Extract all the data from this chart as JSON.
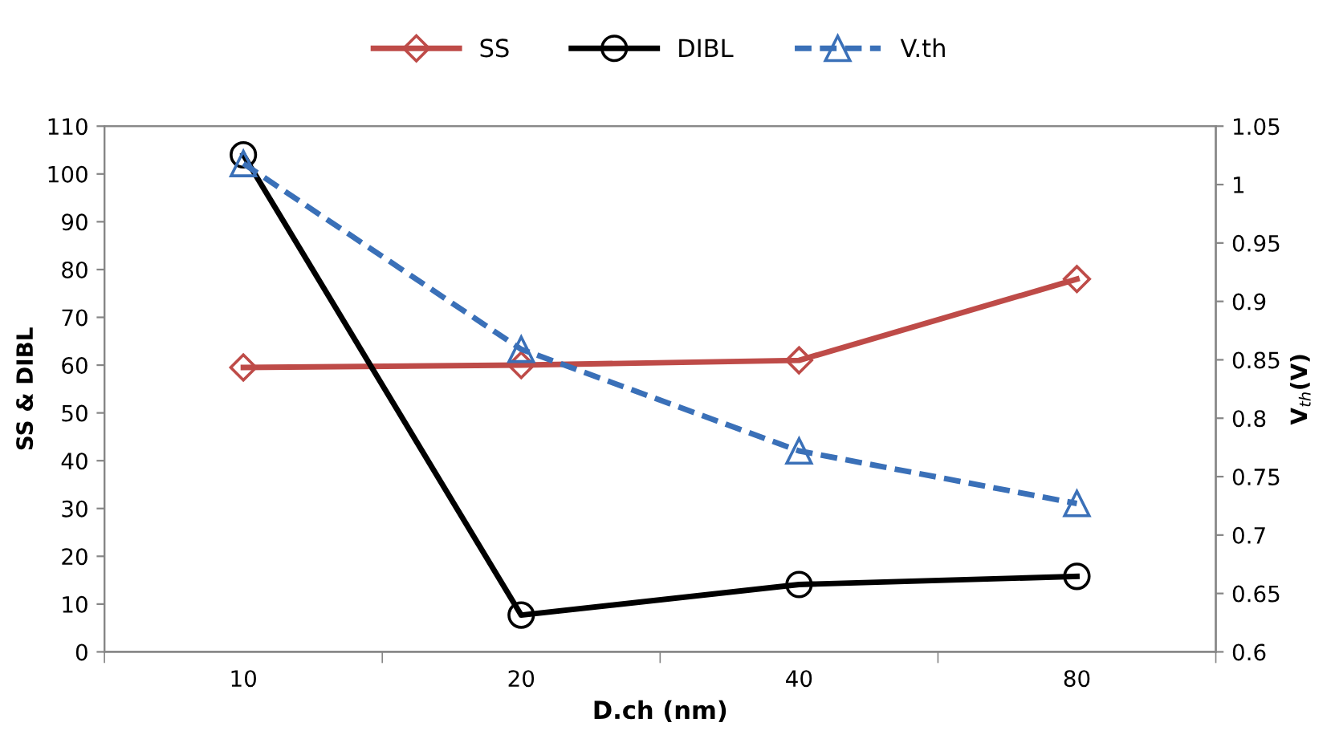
{
  "chart_data": {
    "type": "line",
    "categories": [
      "10",
      "20",
      "40",
      "80"
    ],
    "xlabel": "D.ch (nm)",
    "ylabel": "SS & DIBL",
    "y2label": "V$_{th}$(V)",
    "ylim": [
      0,
      110
    ],
    "yticks": [
      0,
      10,
      20,
      30,
      40,
      50,
      60,
      70,
      80,
      90,
      100,
      110
    ],
    "y2lim": [
      0.6,
      1.05
    ],
    "y2ticks": [
      0.6,
      0.65,
      0.7,
      0.75,
      0.8,
      0.85,
      0.9,
      0.95,
      1,
      1.05
    ],
    "grid": false,
    "legend": "top",
    "series": [
      {
        "name": "SS",
        "color": "#be4b48",
        "values": [
          59.5,
          60,
          61,
          78
        ],
        "marker": "diamond",
        "line_style": "solid"
      },
      {
        "name": "DIBL",
        "color": "#000000",
        "values": [
          104,
          7.7,
          14.1,
          15.8
        ],
        "marker": "circle",
        "line_style": "solid"
      },
      {
        "name": "V.th",
        "color": "#3a70b8",
        "values": [
          1.018,
          0.859,
          0.772,
          0.727
        ],
        "marker": "triangle",
        "line_style": "dashed",
        "axis": "y2"
      }
    ]
  }
}
